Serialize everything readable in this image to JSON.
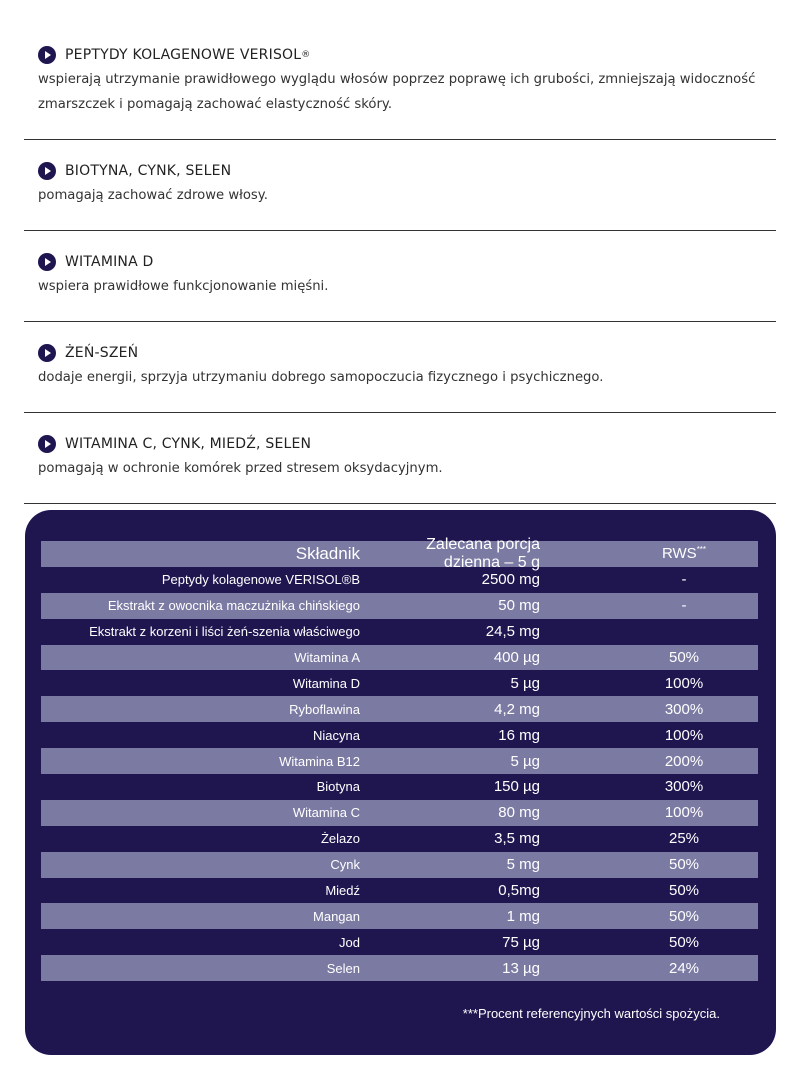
{
  "benefits": [
    {
      "title": "PEPTYDY KOLAGENOWE VERISOL",
      "sup": "®",
      "desc": "wspierają utrzymanie prawidłowego wyglądu włosów poprzez poprawę ich grubości, zmniejszają widoczność zmarszczek i pomagają zachować elastyczność skóry."
    },
    {
      "title": "BIOTYNA, CYNK, SELEN",
      "sup": "",
      "desc": "pomagają zachować zdrowe włosy."
    },
    {
      "title": "WITAMINA D",
      "sup": "",
      "desc": "wspiera prawidłowe funkcjonowanie mięśni."
    },
    {
      "title": "ŻEŃ-SZEŃ",
      "sup": "",
      "desc": "dodaje energii, sprzyja utrzymaniu dobrego samopoczucia fizycznego i psychicznego."
    },
    {
      "title": "WITAMINA C, CYNK, MIEDŹ, SELEN",
      "sup": "",
      "desc": "pomagają w ochronie komórek przed stresem oksydacyjnym."
    }
  ],
  "table": {
    "headers": [
      "Składnik",
      "Zalecana porcja dzienna – 5 g",
      "RWS"
    ],
    "rws_sup": "***",
    "rows": [
      [
        "Peptydy kolagenowe VERISOL®B",
        "2500 mg",
        "-"
      ],
      [
        "Ekstrakt z owocnika maczużnika chińskiego",
        "50 mg",
        "-"
      ],
      [
        "Ekstrakt z korzeni i liści żeń-szenia właściwego",
        "24,5 mg",
        ""
      ],
      [
        "Witamina A",
        "400 µg",
        "50%"
      ],
      [
        "Witamina D",
        "5 µg",
        "100%"
      ],
      [
        "Ryboflawina",
        "4,2 mg",
        "300%"
      ],
      [
        "Niacyna",
        "16 mg",
        "100%"
      ],
      [
        "Witamina B12",
        "5 µg",
        "200%"
      ],
      [
        "Biotyna",
        "150 µg",
        "300%"
      ],
      [
        "Witamina C",
        "80 mg",
        "100%"
      ],
      [
        "Żelazo",
        "3,5 mg",
        "25%"
      ],
      [
        "Cynk",
        "5 mg",
        "50%"
      ],
      [
        "Miedź",
        "0,5mg",
        "50%"
      ],
      [
        "Mangan",
        "1 mg",
        "50%"
      ],
      [
        "Jod",
        "75 µg",
        "50%"
      ],
      [
        "Selen",
        "13 µg",
        "24%"
      ]
    ],
    "footnote": "***Procent referencyjnych wartości spożycia."
  },
  "colors": {
    "navy": "#1f1650",
    "stripe": "#7b7aa3"
  }
}
